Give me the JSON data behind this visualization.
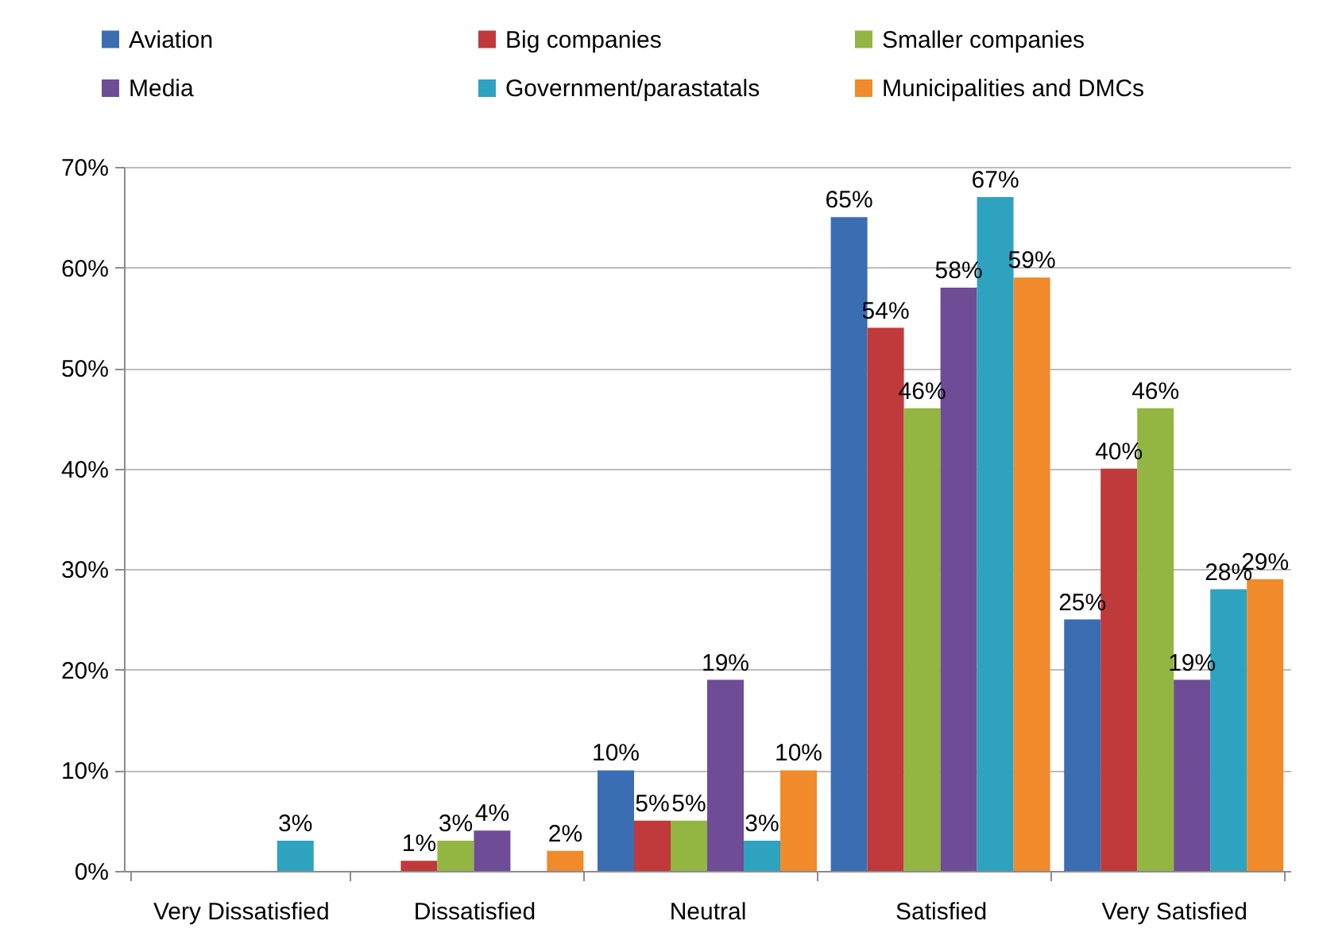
{
  "chart_data": {
    "type": "bar",
    "categories": [
      "Very Dissatisfied",
      "Dissatisfied",
      "Neutral",
      "Satisfied",
      "Very Satisfied"
    ],
    "series": [
      {
        "name": "Aviation",
        "color": "#3b6db3",
        "values": [
          null,
          null,
          10,
          65,
          25
        ],
        "value_labels": [
          null,
          null,
          "10%",
          "65%",
          "25%"
        ]
      },
      {
        "name": "Big companies",
        "color": "#c0393b",
        "values": [
          null,
          1,
          5,
          54,
          40
        ],
        "value_labels": [
          null,
          "1%",
          "5%",
          "54%",
          "40%"
        ]
      },
      {
        "name": "Smaller companies",
        "color": "#93b541",
        "values": [
          null,
          3,
          5,
          46,
          46
        ],
        "value_labels": [
          null,
          "3%",
          "5%",
          "46%",
          "46%"
        ]
      },
      {
        "name": "Media",
        "color": "#6e4c96",
        "values": [
          null,
          4,
          19,
          58,
          19
        ],
        "value_labels": [
          null,
          "4%",
          "19%",
          "58%",
          "19%"
        ]
      },
      {
        "name": "Government/parastatals",
        "color": "#2ea3c0",
        "values": [
          3,
          null,
          3,
          67,
          28
        ],
        "value_labels": [
          "3%",
          null,
          "3%",
          "67%",
          "28%"
        ]
      },
      {
        "name": "Municipalities and DMCs",
        "color": "#f08a2a",
        "values": [
          null,
          2,
          10,
          59,
          29
        ],
        "value_labels": [
          null,
          "2%",
          "10%",
          "59%",
          "29%"
        ]
      }
    ],
    "ylim": [
      0,
      70
    ],
    "yticks": [
      {
        "value": 0,
        "label": "0%"
      },
      {
        "value": 10,
        "label": "10%"
      },
      {
        "value": 20,
        "label": "20%"
      },
      {
        "value": 30,
        "label": "30%"
      },
      {
        "value": 40,
        "label": "40%"
      },
      {
        "value": 50,
        "label": "50%"
      },
      {
        "value": 60,
        "label": "60%"
      },
      {
        "value": 70,
        "label": "70%"
      }
    ],
    "grid": "y",
    "legend": "top"
  }
}
